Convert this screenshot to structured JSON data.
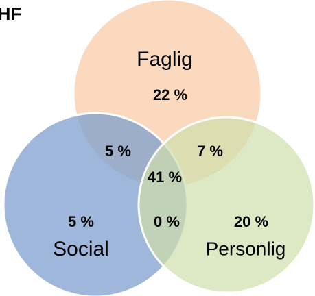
{
  "title": "HF",
  "sets": [
    {
      "label": "Faglig"
    },
    {
      "label": "Social"
    },
    {
      "label": "Personlig"
    }
  ],
  "regions": [
    {
      "label": "22 %"
    },
    {
      "label": "5 %"
    },
    {
      "label": "7 %"
    },
    {
      "label": "41 %"
    },
    {
      "label": "5 %"
    },
    {
      "label": "0 %"
    },
    {
      "label": "20 %"
    }
  ]
}
